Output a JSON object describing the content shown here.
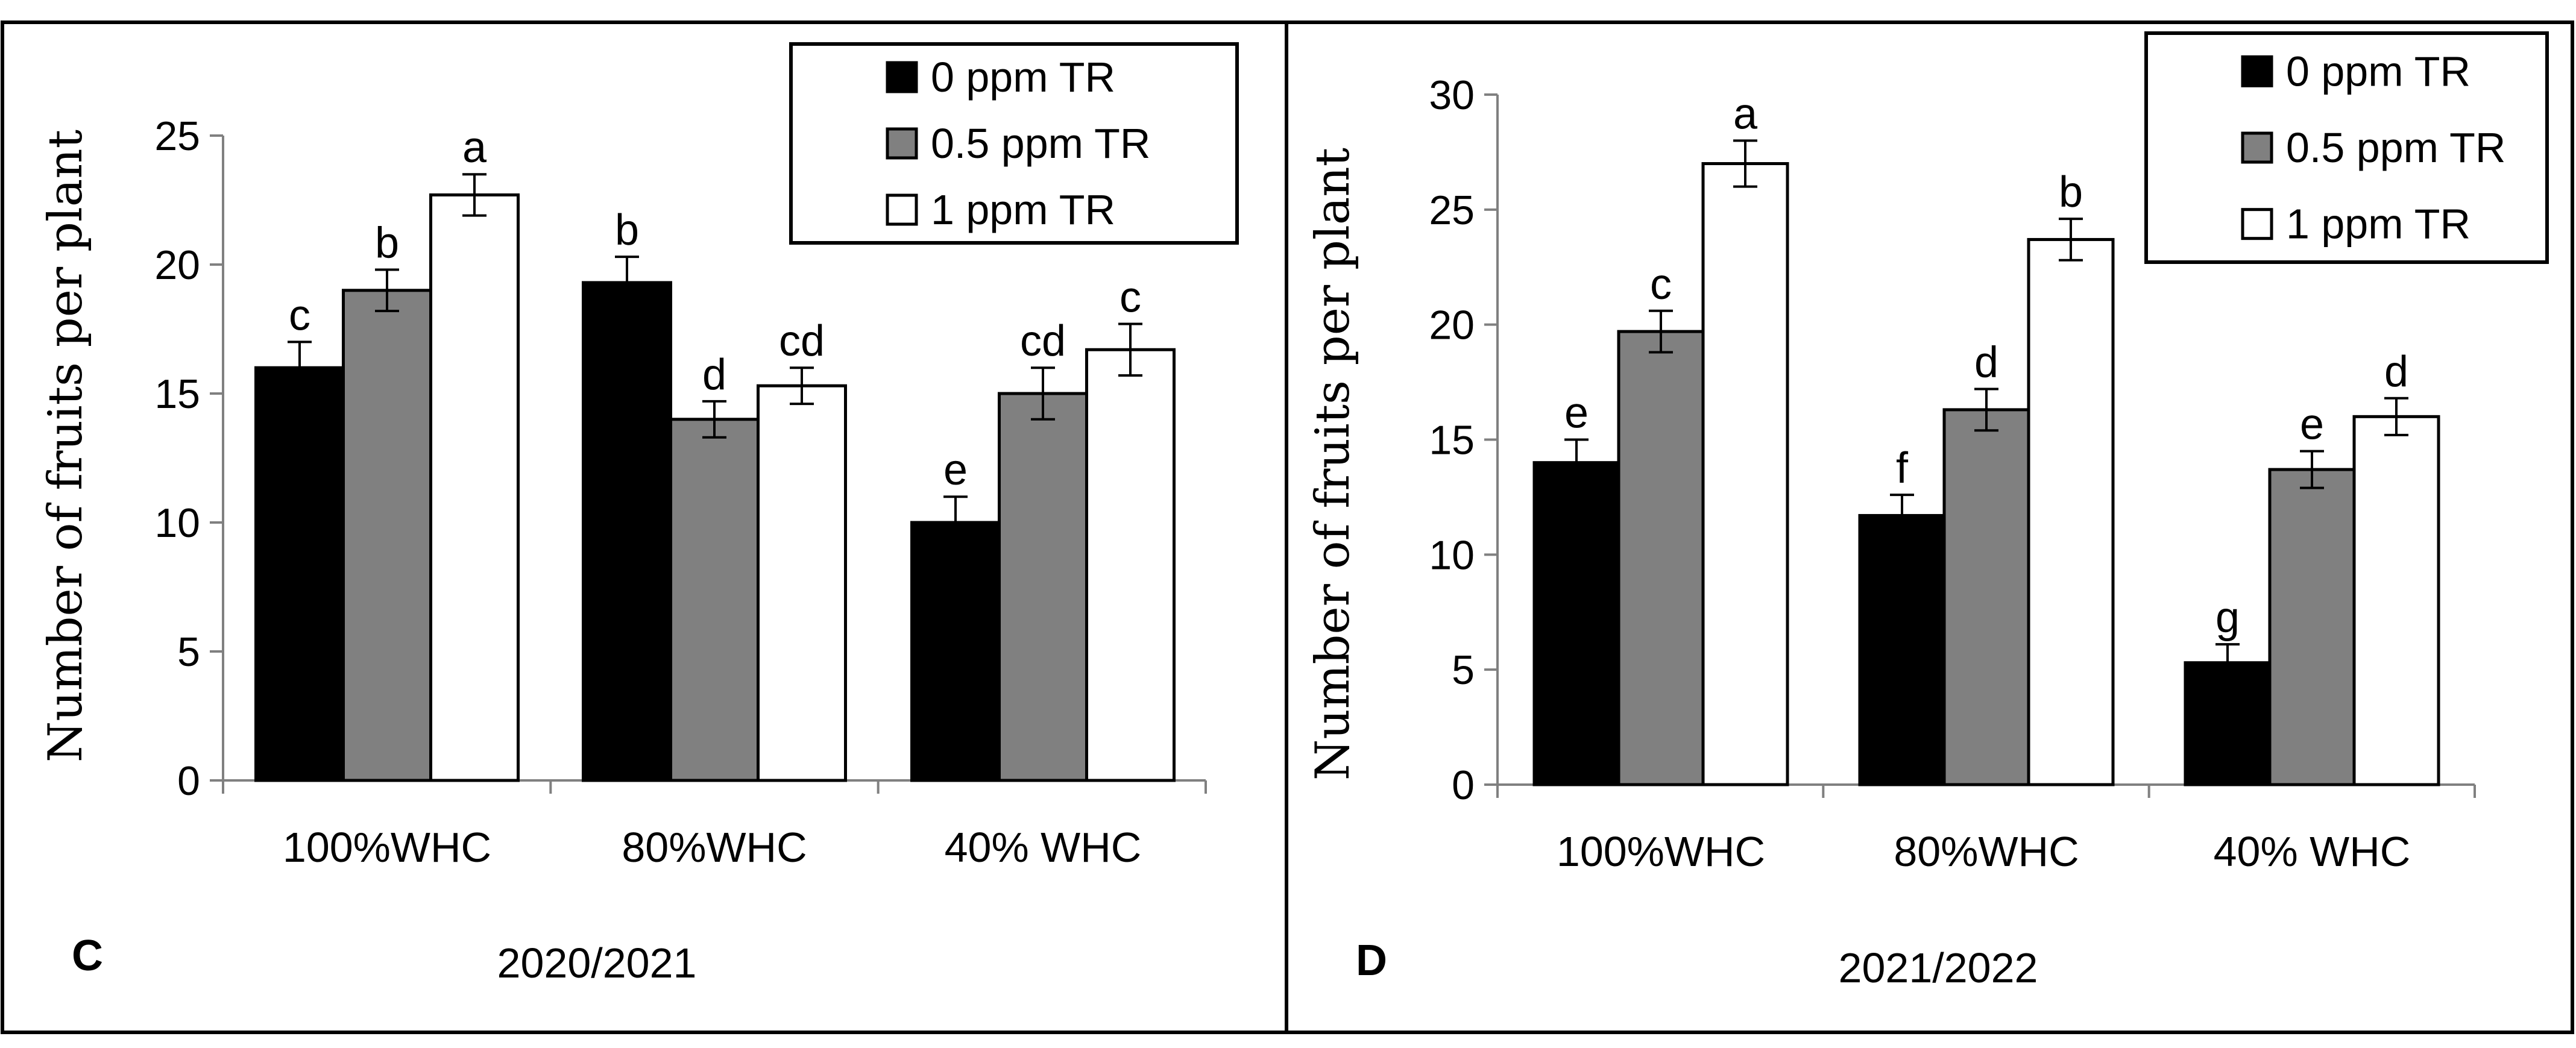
{
  "chart_data": [
    {
      "type": "bar",
      "panel_letter": "C",
      "caption": "2020/2021",
      "ylabel": "Number of fruits per plant",
      "xlabel": "",
      "ylim": [
        0,
        25
      ],
      "yticks": [
        "0",
        "5",
        "10",
        "15",
        "20",
        "25"
      ],
      "categories": [
        "100%WHC",
        "80%WHC",
        "40% WHC"
      ],
      "legend_position": "top-right",
      "series": [
        {
          "name": "0 ppm TR",
          "color": "#000000",
          "values": [
            16.0,
            19.3,
            10.0
          ],
          "errors": [
            1.0,
            1.0,
            1.0
          ],
          "labels": [
            "c",
            "b",
            "e"
          ]
        },
        {
          "name": "0.5 ppm TR",
          "color": "#808080",
          "values": [
            19.0,
            14.0,
            15.0
          ],
          "errors": [
            0.8,
            0.7,
            1.0
          ],
          "labels": [
            "b",
            "d",
            "cd"
          ]
        },
        {
          "name": "1 ppm TR",
          "color": "#ffffff",
          "values": [
            22.7,
            15.3,
            16.7
          ],
          "errors": [
            0.8,
            0.7,
            1.0
          ],
          "labels": [
            "a",
            "cd",
            "c"
          ]
        }
      ]
    },
    {
      "type": "bar",
      "panel_letter": "D",
      "caption": "2021/2022",
      "ylabel": "Number of fruits per plant",
      "xlabel": "",
      "ylim": [
        0,
        30
      ],
      "yticks": [
        "0",
        "5",
        "10",
        "15",
        "20",
        "25",
        "30"
      ],
      "categories": [
        "100%WHC",
        "80%WHC",
        "40% WHC"
      ],
      "legend_position": "top-right",
      "series": [
        {
          "name": "0 ppm TR",
          "color": "#000000",
          "values": [
            14.0,
            11.7,
            5.3
          ],
          "errors": [
            1.0,
            0.9,
            0.8
          ],
          "labels": [
            "e",
            "f",
            "g"
          ]
        },
        {
          "name": "0.5 ppm TR",
          "color": "#808080",
          "values": [
            19.7,
            16.3,
            13.7
          ],
          "errors": [
            0.9,
            0.9,
            0.8
          ],
          "labels": [
            "c",
            "d",
            "e"
          ]
        },
        {
          "name": "1 ppm TR",
          "color": "#ffffff",
          "values": [
            27.0,
            23.7,
            16.0
          ],
          "errors": [
            1.0,
            0.9,
            0.8
          ],
          "labels": [
            "a",
            "b",
            "d"
          ]
        }
      ]
    }
  ]
}
